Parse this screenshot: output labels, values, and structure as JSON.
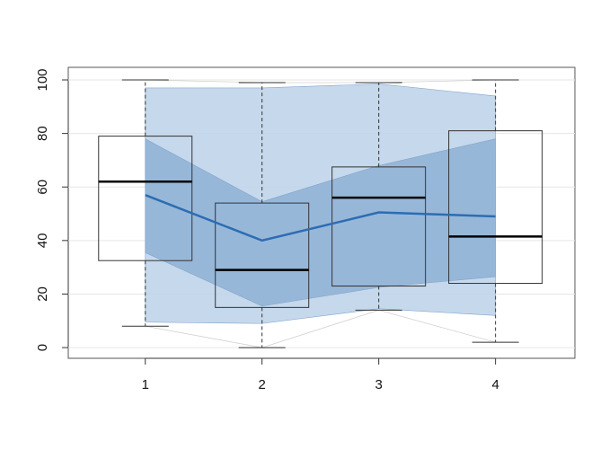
{
  "chart_data": {
    "type": "boxplot",
    "x": [
      1,
      2,
      3,
      4
    ],
    "xlim": [
      0.34,
      4.68
    ],
    "xticks": [
      1,
      2,
      3,
      4
    ],
    "ylim": [
      -4,
      104.7
    ],
    "yticks": [
      0,
      20,
      40,
      60,
      80,
      100
    ],
    "grid": true,
    "boxes": [
      {
        "min": 8,
        "q1": 32.5,
        "median": 62,
        "q3": 79,
        "max": 100
      },
      {
        "min": 0,
        "q1": 15,
        "median": 29,
        "q3": 54,
        "max": 99
      },
      {
        "min": 14,
        "q1": 23,
        "median": 56,
        "q3": 67.5,
        "max": 99
      },
      {
        "min": 2,
        "q1": 24,
        "median": 41.5,
        "q3": 81,
        "max": 100
      }
    ],
    "box_color": "#333333",
    "bands": [
      {
        "lower": [
          9.5,
          9,
          14.5,
          12
        ],
        "upper": [
          97,
          97,
          98.5,
          94
        ],
        "color": "#bcd1e8"
      },
      {
        "lower": [
          35.5,
          15.5,
          22.5,
          26.5
        ],
        "upper": [
          78,
          54.5,
          68,
          78
        ],
        "color": "#8eb1d6"
      }
    ],
    "line": {
      "values": [
        57,
        40,
        50.5,
        49
      ],
      "color": "#2c6db2"
    }
  }
}
